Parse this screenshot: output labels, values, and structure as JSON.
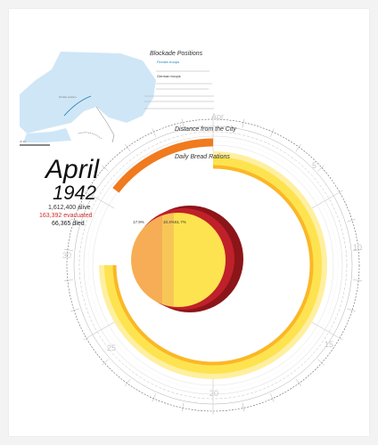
{
  "month": "April",
  "year": "1942",
  "population": {
    "alive": "1,612,400 alive",
    "evacuated": "163,392 evacuated",
    "died": "66,365 died"
  },
  "blockade_positions": {
    "title": "Blockade Positions",
    "finnish_troops": "Finnish troops",
    "german_troops": "German troops"
  },
  "distance_heading": "Distance from the City",
  "rations_heading": "Daily Bread Rations",
  "ring_labels": {
    "apr": "Apr",
    "d5": "5",
    "d10": "10",
    "d15": "15",
    "d20": "20",
    "d25": "25",
    "d30": "30"
  },
  "pie": {
    "slice_a": "17.9%",
    "slice_b": "10.4%",
    "slice_c": "51.7%"
  },
  "colors": {
    "orange": "#f07a1e",
    "yellow": "#fde34f",
    "light_yellow": "#ffefa0",
    "amber": "#fbb726",
    "dark_red": "#8c1519",
    "red": "#c0202a",
    "light_orange": "#f6ad55",
    "water": "#cfe6f7"
  }
}
